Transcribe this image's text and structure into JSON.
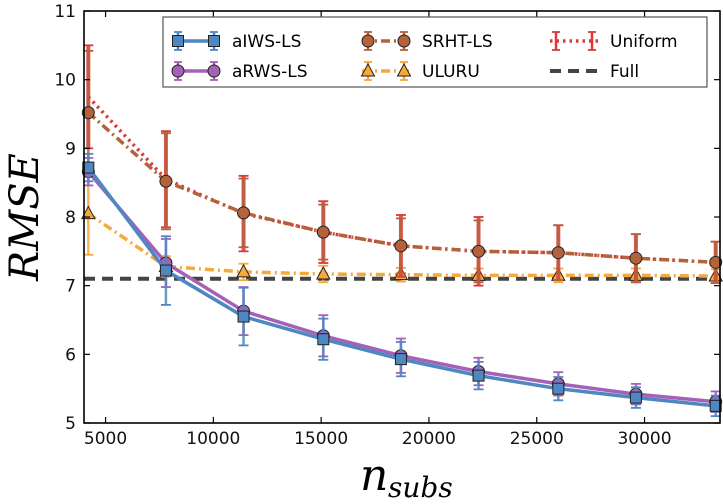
{
  "chart_data": {
    "type": "line",
    "title": "",
    "xlabel": "n",
    "xlabel_sub": "subs",
    "ylabel": "RMSE",
    "xlim": [
      4000,
      33500
    ],
    "ylim": [
      5,
      11
    ],
    "xticks": [
      5000,
      10000,
      15000,
      20000,
      25000,
      30000
    ],
    "yticks": [
      5,
      6,
      7,
      8,
      9,
      10,
      11
    ],
    "grid": false,
    "legend_position": "top",
    "x": [
      4200,
      7800,
      11400,
      15100,
      18700,
      22300,
      26000,
      29600,
      33300
    ],
    "series": [
      {
        "name": "aIWS-LS",
        "color": "#4f87c1",
        "marker": "square",
        "linestyle": "solid",
        "values": [
          8.72,
          7.22,
          6.55,
          6.22,
          5.93,
          5.69,
          5.5,
          5.37,
          5.25
        ],
        "errors": [
          0.2,
          0.5,
          0.42,
          0.3,
          0.25,
          0.2,
          0.17,
          0.15,
          0.15
        ]
      },
      {
        "name": "aRWS-LS",
        "color": "#a561b8",
        "marker": "circle",
        "linestyle": "solid",
        "values": [
          8.66,
          7.33,
          6.63,
          6.27,
          5.98,
          5.75,
          5.57,
          5.42,
          5.31
        ],
        "errors": [
          0.2,
          0.35,
          0.35,
          0.3,
          0.25,
          0.2,
          0.17,
          0.15,
          0.15
        ]
      },
      {
        "name": "SRHT-LS",
        "color": "#b4623a",
        "marker": "circle",
        "linestyle": "dashdot",
        "values": [
          9.52,
          8.52,
          8.06,
          7.78,
          7.58,
          7.5,
          7.48,
          7.4,
          7.34
        ],
        "errors": [
          0.9,
          0.7,
          0.5,
          0.4,
          0.4,
          0.45,
          0.4,
          0.35,
          0.3
        ]
      },
      {
        "name": "ULURU",
        "color": "#f7a83b",
        "marker": "triangle",
        "linestyle": "dashdot",
        "values": [
          8.05,
          7.28,
          7.2,
          7.17,
          7.16,
          7.15,
          7.15,
          7.15,
          7.14
        ],
        "errors": [
          0.6,
          0.15,
          0.12,
          0.12,
          0.1,
          0.1,
          0.1,
          0.1,
          0.1
        ]
      },
      {
        "name": "Uniform",
        "color": "#d93a3a",
        "marker": "none",
        "linestyle": "dotted",
        "values": [
          9.75,
          8.55,
          8.05,
          7.78,
          7.58,
          7.5,
          7.48,
          7.4,
          7.34
        ],
        "errors": [
          0.75,
          0.7,
          0.55,
          0.45,
          0.45,
          0.5,
          0.4,
          0.35,
          0.3
        ]
      },
      {
        "name": "Full",
        "color": "#444444",
        "marker": "none",
        "linestyle": "dashed",
        "values": [
          7.1,
          7.1,
          7.1,
          7.1,
          7.1,
          7.1,
          7.1,
          7.1,
          7.1
        ],
        "errors": null
      }
    ]
  }
}
